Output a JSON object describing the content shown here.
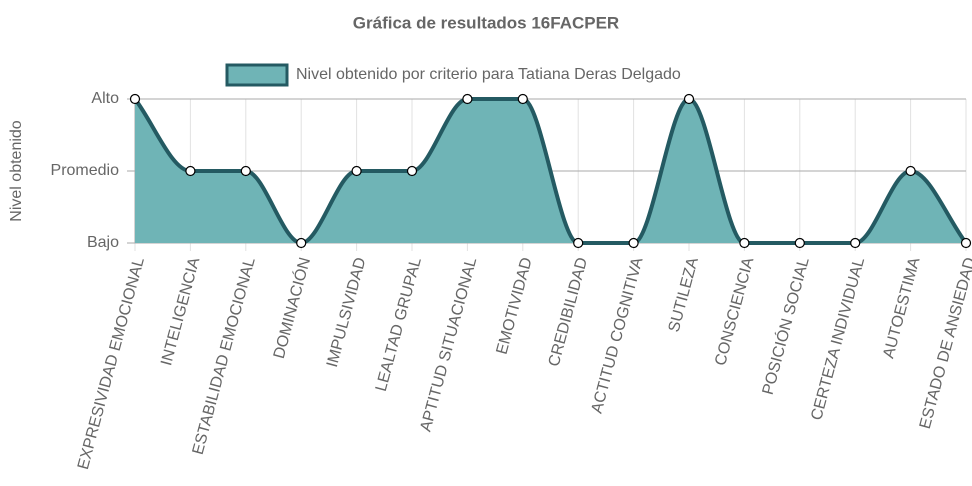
{
  "chart_data": {
    "type": "area",
    "title": "Gráfica de resultados 16FACPER",
    "y_label": "Nivel obtenido",
    "categories": [
      "EXPRESIVIDAD EMOCIONAL",
      "INTELIGENCIA",
      "ESTABILIDAD EMOCIONAL",
      "DOMINACIÓN",
      "IMPULSIVIDAD",
      "LEALTAD GRUPAL",
      "APTITUD SITUACIONAL",
      "EMOTIVIDAD",
      "CREDIBILIDAD",
      "ACTITUD COGNITIVA",
      "SUTILEZA",
      "CONSCIENCIA",
      "POSICIÓN SOCIAL",
      "CERTEZA INDIVIDUAL",
      "AUTOESTIMA",
      "ESTADO DE ANSIEDAD"
    ],
    "series": [
      {
        "name": "Nivel obtenido por criterio para Tatiana Deras Delgado",
        "color": "#245a62",
        "fill": "#6fb4b6",
        "values": [
          3,
          2,
          2,
          1,
          2,
          2,
          3,
          3,
          1,
          1,
          3,
          1,
          1,
          1,
          2,
          1
        ]
      }
    ],
    "ylim": [
      1,
      3
    ],
    "yticks": [
      {
        "value": 1,
        "label": "Bajo"
      },
      {
        "value": 2,
        "label": "Promedio"
      },
      {
        "value": 3,
        "label": "Alto"
      }
    ],
    "grid": true,
    "legend": "top"
  }
}
